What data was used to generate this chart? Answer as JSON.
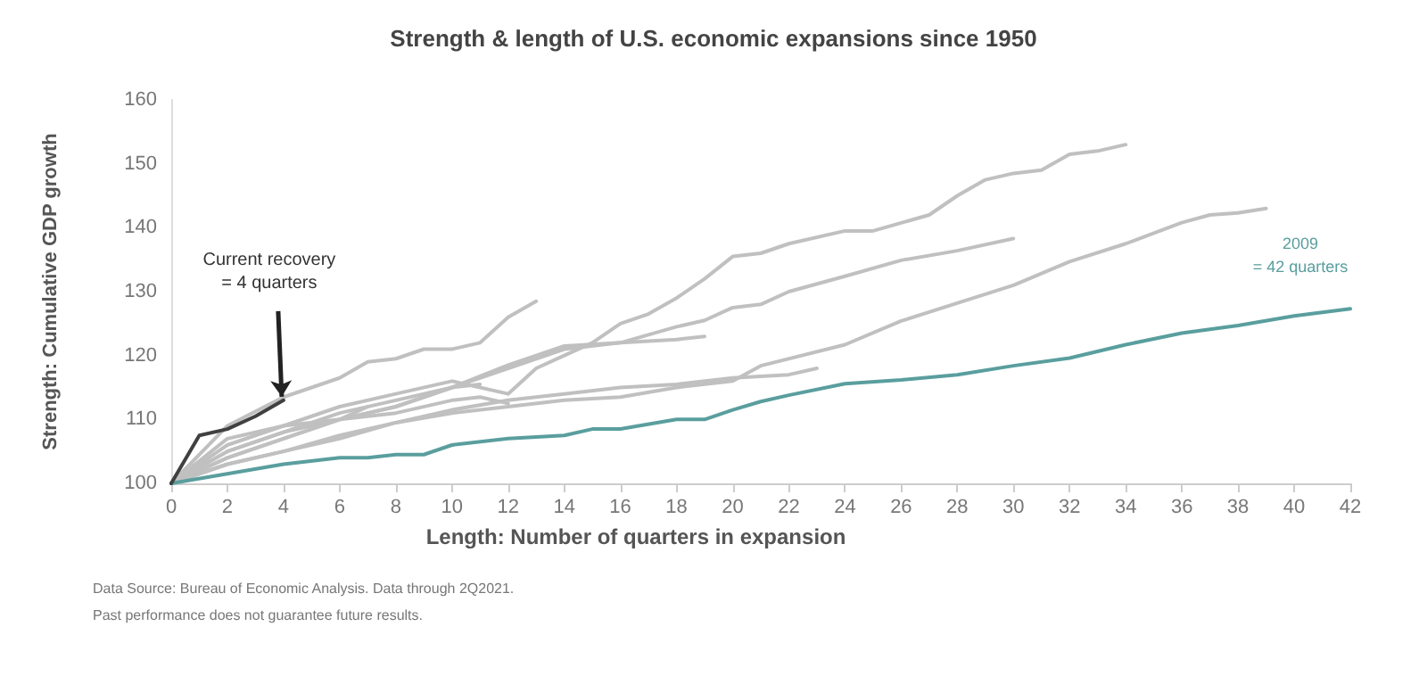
{
  "chart_data": {
    "type": "line",
    "title": "Strength & length of U.S. economic expansions since 1950",
    "xlabel": "Length: Number of quarters in expansion",
    "ylabel": "Strength: Cumulative GDP growth",
    "xlim": [
      0,
      42
    ],
    "xticks": [
      0,
      2,
      4,
      6,
      8,
      10,
      12,
      14,
      16,
      18,
      20,
      22,
      24,
      26,
      28,
      30,
      32,
      34,
      36,
      38,
      40,
      42
    ],
    "ylim": [
      100,
      160
    ],
    "yticks": [
      100,
      110,
      120,
      130,
      140,
      150,
      160
    ],
    "grid": false,
    "marker": "none",
    "line_style": "solid",
    "series": [
      {
        "color": "#c0c0c0",
        "x": [
          0,
          2,
          4,
          6,
          8,
          10,
          12,
          13,
          14,
          15,
          16,
          17,
          18,
          19,
          20,
          21,
          22,
          24,
          25,
          27,
          28,
          29,
          30,
          31,
          32,
          33,
          34
        ],
        "values": [
          100,
          106,
          109,
          112,
          114,
          116,
          114,
          118,
          120,
          122,
          125,
          126.5,
          129,
          132,
          135.5,
          136,
          137.5,
          139.5,
          139.5,
          142,
          145,
          147.5,
          148.5,
          149,
          151.5,
          152,
          153
        ]
      },
      {
        "color": "#c0c0c0",
        "x": [
          0,
          2,
          4,
          6,
          8,
          10,
          12,
          14,
          16,
          18,
          19,
          20,
          21,
          22,
          24,
          26,
          28,
          30
        ],
        "values": [
          100,
          105,
          108,
          111,
          113,
          115,
          118,
          121,
          122,
          124.5,
          125.5,
          127.5,
          128,
          130,
          132.4,
          134.9,
          136.4,
          138.3
        ]
      },
      {
        "color": "#c0c0c0",
        "x": [
          0,
          2,
          4,
          6,
          8,
          10,
          12,
          14,
          16,
          18,
          20,
          21,
          24,
          26,
          28,
          30,
          32,
          34,
          36,
          37,
          38,
          39
        ],
        "values": [
          100,
          103,
          105,
          107,
          109.5,
          111,
          112,
          113,
          113.5,
          115,
          116,
          118.4,
          121.7,
          125.4,
          128.2,
          131,
          134.7,
          137.5,
          140.8,
          142,
          142.3,
          143
        ]
      },
      {
        "color": "#c0c0c0",
        "x": [
          0,
          2,
          4,
          6,
          8,
          10,
          12,
          14,
          16,
          18,
          19
        ],
        "values": [
          100,
          107,
          109,
          110,
          112,
          115,
          118.5,
          121.5,
          122,
          122.5,
          123
        ]
      },
      {
        "color": "#c0c0c0",
        "x": [
          0,
          2,
          4,
          6,
          8,
          10,
          12,
          14,
          16,
          18,
          20,
          22,
          23
        ],
        "values": [
          100,
          103,
          105,
          107.5,
          109.5,
          111.5,
          113,
          114,
          115,
          115.5,
          116.5,
          117,
          118
        ]
      },
      {
        "color": "#c0c0c0",
        "x": [
          0,
          2,
          4,
          6,
          8,
          10,
          11,
          12
        ],
        "values": [
          100,
          105,
          108,
          110,
          111,
          113,
          113.5,
          112.5
        ]
      },
      {
        "color": "#c0c0c0",
        "x": [
          0,
          2,
          4,
          6,
          8,
          10,
          11
        ],
        "values": [
          100,
          104,
          107,
          110,
          112,
          115,
          115.5
        ]
      },
      {
        "color": "#c0c0c0",
        "x": [
          0,
          2,
          4,
          6,
          7
        ],
        "values": [
          100,
          104,
          107,
          110,
          112
        ]
      },
      {
        "color": "#c0c0c0",
        "x": [
          0,
          2,
          4,
          6,
          7,
          8,
          9,
          10,
          11,
          12,
          13
        ],
        "values": [
          100,
          109,
          113.5,
          116.5,
          119,
          119.5,
          121,
          121,
          122,
          126,
          128.5
        ]
      },
      {
        "color": "#5a9e9e",
        "x": [
          0,
          2,
          4,
          6,
          7,
          8,
          9,
          10,
          12,
          14,
          15,
          16,
          18,
          19,
          20,
          21,
          22,
          24,
          26,
          28,
          30,
          32,
          34,
          36,
          38,
          40,
          42
        ],
        "values": [
          100,
          101.5,
          103,
          104,
          104,
          104.5,
          104.5,
          106,
          107,
          107.5,
          108.5,
          108.5,
          110,
          110,
          111.5,
          112.8,
          113.8,
          115.6,
          116.2,
          117,
          118.4,
          119.6,
          121.7,
          123.5,
          124.7,
          126.2,
          127.3
        ]
      },
      {
        "color": "#404040",
        "x": [
          0,
          1,
          2,
          3,
          4
        ],
        "values": [
          100,
          107.5,
          108.5,
          110.5,
          113
        ]
      }
    ],
    "annotations": [
      {
        "text": "Current recovery\n= 4 quarters",
        "x": 4,
        "y": 113
      },
      {
        "text": "2009\n= 42 quarters",
        "x": 42,
        "y": 127.3
      },
      "Data Source: Bureau of Economic Analysis. Data through 2Q2021.",
      "Past performance does not guarantee future results."
    ]
  }
}
